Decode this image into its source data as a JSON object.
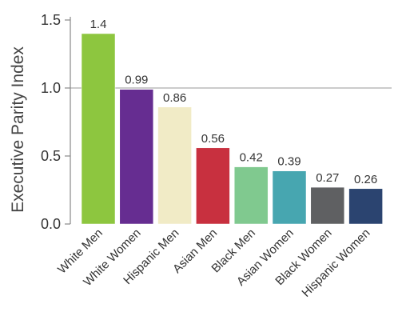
{
  "chart_data": {
    "type": "bar",
    "title": "",
    "xlabel": "",
    "ylabel": "Executive Parity Index",
    "ylim": [
      0,
      1.5
    ],
    "yticks": [
      "0.0",
      "0.5",
      "1.0",
      "1.5"
    ],
    "reference_line": 1.0,
    "categories": [
      "White Men",
      "White Women",
      "Hispanic Men",
      "Asian Men",
      "Black Men",
      "Asian Women",
      "Black Women",
      "Hispanic Women"
    ],
    "values": [
      1.4,
      0.99,
      0.86,
      0.56,
      0.42,
      0.39,
      0.27,
      0.26
    ],
    "value_labels": [
      "1.4",
      "0.99",
      "0.86",
      "0.56",
      "0.42",
      "0.39",
      "0.27",
      "0.26"
    ],
    "colors": [
      "#8dc63f",
      "#662d91",
      "#f1ebc6",
      "#c8303f",
      "#80c98f",
      "#47a6b0",
      "#5f6062",
      "#2b4470"
    ],
    "grid": false,
    "legend": "none"
  }
}
